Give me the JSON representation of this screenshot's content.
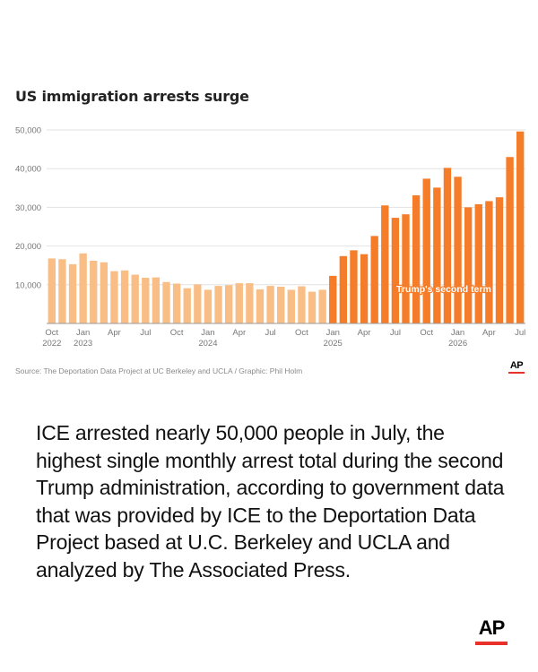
{
  "chart_data": {
    "type": "bar",
    "title": "US immigration arrests surge",
    "xlabel": "",
    "ylabel": "",
    "ylim": [
      0,
      50000
    ],
    "yticks": [
      "50,000",
      "40,000",
      "30,000",
      "20,000",
      "10,000"
    ],
    "grid": true,
    "categories": [
      "2022-10",
      "2022-11",
      "2022-12",
      "2023-01",
      "2023-02",
      "2023-03",
      "2023-04",
      "2023-05",
      "2023-06",
      "2023-07",
      "2023-08",
      "2023-09",
      "2023-10",
      "2023-11",
      "2023-12",
      "2024-01",
      "2024-02",
      "2024-03",
      "2024-04",
      "2024-05",
      "2024-06",
      "2024-07",
      "2024-08",
      "2024-09",
      "2024-10",
      "2024-11",
      "2024-12",
      "2025-01",
      "2025-02",
      "2025-03",
      "2025-04",
      "2025-05",
      "2025-06",
      "2025-07",
      "2025-08",
      "2025-09",
      "2025-10",
      "2025-11",
      "2025-12",
      "2026-01",
      "2026-02",
      "2026-03",
      "2026-04",
      "2026-05",
      "2026-06",
      "2026-07"
    ],
    "values": [
      16800,
      16600,
      15300,
      18100,
      16200,
      15800,
      13500,
      13700,
      12600,
      11800,
      11900,
      10700,
      10300,
      9100,
      10100,
      8700,
      9700,
      9900,
      10400,
      10400,
      8800,
      9700,
      9500,
      8700,
      9600,
      8200,
      8700,
      12300,
      17400,
      18900,
      17900,
      22600,
      30500,
      27300,
      28200,
      33100,
      37400,
      35100,
      40200,
      37900,
      30000,
      30800,
      31600,
      32600,
      43000,
      49600
    ],
    "highlight_from_index": 27,
    "colors": {
      "before": "#f9be85",
      "after": "#f57c28"
    },
    "annotation": "Trump's second term",
    "xtick_labels": [
      {
        "index": 0,
        "label": "Oct",
        "year": "2022"
      },
      {
        "index": 3,
        "label": "Jan",
        "year": "2023"
      },
      {
        "index": 6,
        "label": "Apr",
        "year": ""
      },
      {
        "index": 9,
        "label": "Jul",
        "year": ""
      },
      {
        "index": 12,
        "label": "Oct",
        "year": ""
      },
      {
        "index": 15,
        "label": "Jan",
        "year": "2024"
      },
      {
        "index": 18,
        "label": "Apr",
        "year": ""
      },
      {
        "index": 21,
        "label": "Jul",
        "year": ""
      },
      {
        "index": 24,
        "label": "Oct",
        "year": ""
      },
      {
        "index": 27,
        "label": "Jan",
        "year": "2025"
      },
      {
        "index": 30,
        "label": "Apr",
        "year": ""
      },
      {
        "index": 33,
        "label": "Jul",
        "year": ""
      },
      {
        "index": 36,
        "label": "Oct",
        "year": ""
      },
      {
        "index": 39,
        "label": "Jan",
        "year": "2026"
      },
      {
        "index": 42,
        "label": "Apr",
        "year": ""
      },
      {
        "index": 45,
        "label": "Jul",
        "year": ""
      }
    ]
  },
  "source": "Source: The Deportation Data Project at UC Berkeley and UCLA / Graphic: Phil Holm",
  "logo_small": "AP",
  "caption": "ICE arrested nearly 50,000 people in July, the highest single monthly arrest total during the second Trump administration, according to government data that was provided by ICE to the Deportation Data Project based at U.C. Berkeley and UCLA and analyzed by The Associated Press.",
  "logo_big": "AP",
  "brand_color": "#e8312a"
}
